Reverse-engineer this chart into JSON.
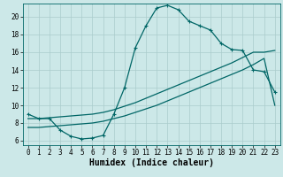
{
  "title": "",
  "xlabel": "Humidex (Indice chaleur)",
  "ylabel": "",
  "background_color": "#cce8e8",
  "grid_color": "#aacccc",
  "line_color": "#006666",
  "x_ticks": [
    0,
    1,
    2,
    3,
    4,
    5,
    6,
    7,
    8,
    9,
    10,
    11,
    12,
    13,
    14,
    15,
    16,
    17,
    18,
    19,
    20,
    21,
    22,
    23
  ],
  "y_ticks": [
    6,
    8,
    10,
    12,
    14,
    16,
    18,
    20
  ],
  "xlim": [
    -0.5,
    23.5
  ],
  "ylim": [
    5.5,
    21.5
  ],
  "line1_y": [
    9.0,
    8.5,
    8.5,
    7.2,
    6.5,
    6.2,
    6.3,
    6.6,
    9.0,
    12.0,
    16.5,
    19.0,
    21.0,
    21.3,
    20.8,
    19.5,
    19.0,
    18.5,
    17.0,
    16.3,
    16.2,
    14.0,
    13.8,
    11.5
  ],
  "line2_y": [
    8.5,
    8.5,
    8.6,
    8.7,
    8.8,
    8.9,
    9.0,
    9.2,
    9.5,
    9.9,
    10.3,
    10.8,
    11.3,
    11.8,
    12.3,
    12.8,
    13.3,
    13.8,
    14.3,
    14.8,
    15.4,
    16.0,
    16.0,
    16.2
  ],
  "line3_y": [
    7.5,
    7.5,
    7.6,
    7.7,
    7.8,
    7.9,
    8.0,
    8.2,
    8.5,
    8.8,
    9.2,
    9.6,
    10.0,
    10.5,
    11.0,
    11.5,
    12.0,
    12.5,
    13.0,
    13.5,
    14.0,
    14.6,
    15.3,
    10.0
  ],
  "linewidth": 0.9,
  "tick_fontsize": 5.5,
  "xlabel_fontsize": 7.0,
  "fig_width": 3.2,
  "fig_height": 2.0,
  "dpi": 100
}
